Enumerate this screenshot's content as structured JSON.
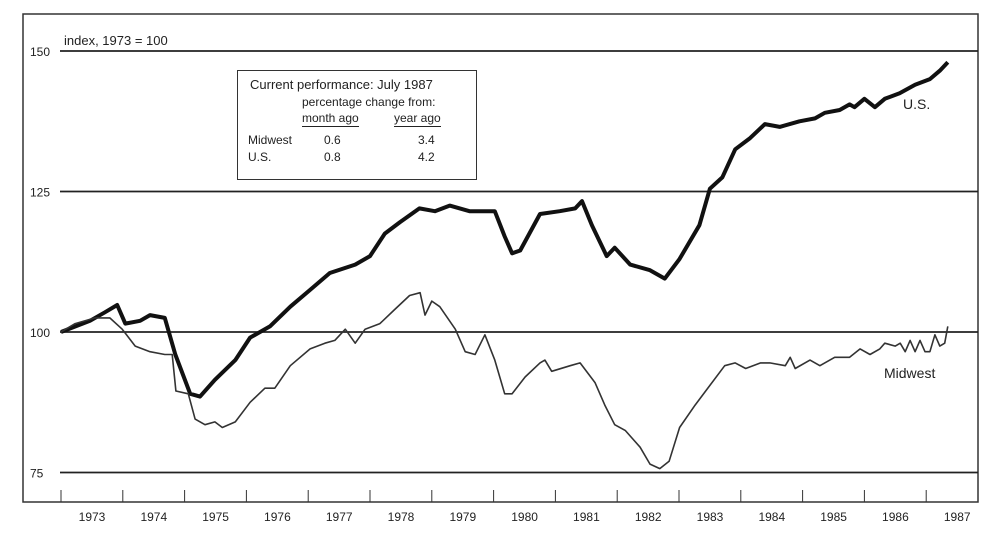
{
  "chart_data": {
    "type": "line",
    "ylabel": "index, 1973 = 100",
    "ylim": [
      75,
      150
    ],
    "yticks": [
      75,
      100,
      125,
      150
    ],
    "xlim": [
      1973,
      1987.6
    ],
    "xtick_labels": [
      "1973",
      "1974",
      "1975",
      "1976",
      "1977",
      "1978",
      "1979",
      "1980",
      "1981",
      "1982",
      "1983",
      "1984",
      "1985",
      "1986",
      "1987"
    ],
    "grid": "horizontal at y ticks",
    "series": [
      {
        "name": "U.S.",
        "color": "#111111",
        "points": [
          [
            1973.0,
            100
          ],
          [
            1973.47,
            102
          ],
          [
            1973.71,
            103.5
          ],
          [
            1973.91,
            104.8
          ],
          [
            1974.04,
            101.5
          ],
          [
            1974.28,
            102
          ],
          [
            1974.44,
            103
          ],
          [
            1974.68,
            102.5
          ],
          [
            1974.85,
            96
          ],
          [
            1975.09,
            89
          ],
          [
            1975.25,
            88.5
          ],
          [
            1975.49,
            91.5
          ],
          [
            1975.82,
            95
          ],
          [
            1976.06,
            99
          ],
          [
            1976.38,
            101
          ],
          [
            1976.71,
            104.5
          ],
          [
            1977.03,
            107.5
          ],
          [
            1977.35,
            110.5
          ],
          [
            1977.76,
            112
          ],
          [
            1978.0,
            113.5
          ],
          [
            1978.24,
            117.5
          ],
          [
            1978.48,
            119.5
          ],
          [
            1978.8,
            122
          ],
          [
            1979.05,
            121.5
          ],
          [
            1979.29,
            122.5
          ],
          [
            1979.61,
            121.5
          ],
          [
            1980.02,
            121.5
          ],
          [
            1980.18,
            117
          ],
          [
            1980.3,
            114
          ],
          [
            1980.43,
            114.5
          ],
          [
            1980.75,
            121
          ],
          [
            1981.07,
            121.5
          ],
          [
            1981.32,
            122
          ],
          [
            1981.43,
            123.3
          ],
          [
            1981.59,
            119
          ],
          [
            1981.83,
            113.5
          ],
          [
            1981.96,
            115
          ],
          [
            1982.21,
            112
          ],
          [
            1982.53,
            111
          ],
          [
            1982.77,
            109.5
          ],
          [
            1983.01,
            113
          ],
          [
            1983.33,
            119
          ],
          [
            1983.5,
            125.5
          ],
          [
            1983.7,
            127.5
          ],
          [
            1983.91,
            132.5
          ],
          [
            1984.15,
            134.5
          ],
          [
            1984.39,
            137
          ],
          [
            1984.63,
            136.5
          ],
          [
            1984.95,
            137.5
          ],
          [
            1985.2,
            138
          ],
          [
            1985.36,
            139
          ],
          [
            1985.6,
            139.5
          ],
          [
            1985.76,
            140.5
          ],
          [
            1985.84,
            140
          ],
          [
            1986.0,
            141.5
          ],
          [
            1986.17,
            140
          ],
          [
            1986.33,
            141.5
          ],
          [
            1986.57,
            142.5
          ],
          [
            1986.82,
            144
          ],
          [
            1987.06,
            145
          ],
          [
            1987.22,
            146.5
          ],
          [
            1987.35,
            148
          ]
        ]
      },
      {
        "name": "Midwest",
        "color": "#333333",
        "points": [
          [
            1973.0,
            100
          ],
          [
            1973.23,
            101.5
          ],
          [
            1973.55,
            102.5
          ],
          [
            1973.79,
            102.5
          ],
          [
            1973.99,
            100.5
          ],
          [
            1974.2,
            97.5
          ],
          [
            1974.44,
            96.5
          ],
          [
            1974.68,
            96
          ],
          [
            1974.8,
            96
          ],
          [
            1974.86,
            89.5
          ],
          [
            1975.06,
            89
          ],
          [
            1975.17,
            84.5
          ],
          [
            1975.33,
            83.5
          ],
          [
            1975.49,
            84
          ],
          [
            1975.61,
            83
          ],
          [
            1975.82,
            84
          ],
          [
            1976.06,
            87.5
          ],
          [
            1976.3,
            90
          ],
          [
            1976.46,
            90
          ],
          [
            1976.71,
            94
          ],
          [
            1977.03,
            97
          ],
          [
            1977.27,
            98
          ],
          [
            1977.43,
            98.5
          ],
          [
            1977.6,
            100.5
          ],
          [
            1977.76,
            98
          ],
          [
            1977.92,
            100.5
          ],
          [
            1978.16,
            101.5
          ],
          [
            1978.4,
            104
          ],
          [
            1978.64,
            106.5
          ],
          [
            1978.81,
            107
          ],
          [
            1978.89,
            103
          ],
          [
            1979.0,
            105.5
          ],
          [
            1979.13,
            104.5
          ],
          [
            1979.38,
            100.5
          ],
          [
            1979.54,
            96.5
          ],
          [
            1979.7,
            96
          ],
          [
            1979.86,
            99.5
          ],
          [
            1980.02,
            95
          ],
          [
            1980.18,
            89
          ],
          [
            1980.3,
            89
          ],
          [
            1980.51,
            92
          ],
          [
            1980.75,
            94.5
          ],
          [
            1980.83,
            95
          ],
          [
            1980.94,
            93
          ],
          [
            1981.24,
            94
          ],
          [
            1981.4,
            94.5
          ],
          [
            1981.64,
            91
          ],
          [
            1981.8,
            87
          ],
          [
            1981.96,
            83.5
          ],
          [
            1982.13,
            82.5
          ],
          [
            1982.37,
            79.5
          ],
          [
            1982.53,
            76.5
          ],
          [
            1982.69,
            75.7
          ],
          [
            1982.84,
            77
          ],
          [
            1983.01,
            83
          ],
          [
            1983.26,
            87
          ],
          [
            1983.5,
            90.5
          ],
          [
            1983.74,
            94
          ],
          [
            1983.91,
            94.5
          ],
          [
            1984.08,
            93.5
          ],
          [
            1984.32,
            94.5
          ],
          [
            1984.47,
            94.5
          ],
          [
            1984.72,
            94
          ],
          [
            1984.8,
            95.5
          ],
          [
            1984.88,
            93.5
          ],
          [
            1985.12,
            95
          ],
          [
            1985.28,
            94
          ],
          [
            1985.52,
            95.5
          ],
          [
            1985.76,
            95.5
          ],
          [
            1985.93,
            97
          ],
          [
            1986.09,
            96
          ],
          [
            1986.25,
            97
          ],
          [
            1986.33,
            98
          ],
          [
            1986.5,
            97.5
          ],
          [
            1986.58,
            98
          ],
          [
            1986.66,
            96.5
          ],
          [
            1986.74,
            98.5
          ],
          [
            1986.82,
            96.5
          ],
          [
            1986.9,
            98.5
          ],
          [
            1986.98,
            96.5
          ],
          [
            1987.06,
            96.5
          ],
          [
            1987.14,
            99.5
          ],
          [
            1987.22,
            97.5
          ],
          [
            1987.3,
            98
          ],
          [
            1987.35,
            101
          ]
        ]
      }
    ],
    "series_labels": [
      "U.S.",
      "Midwest"
    ]
  },
  "legend_table": {
    "title": "Current performance: July 1987",
    "subtitle": "percentage change from:",
    "columns": [
      "month ago",
      "year ago"
    ],
    "rows": [
      {
        "label": "Midwest",
        "month": "0.6",
        "year": "3.4"
      },
      {
        "label": "U.S.",
        "month": "0.8",
        "year": "4.2"
      }
    ]
  }
}
